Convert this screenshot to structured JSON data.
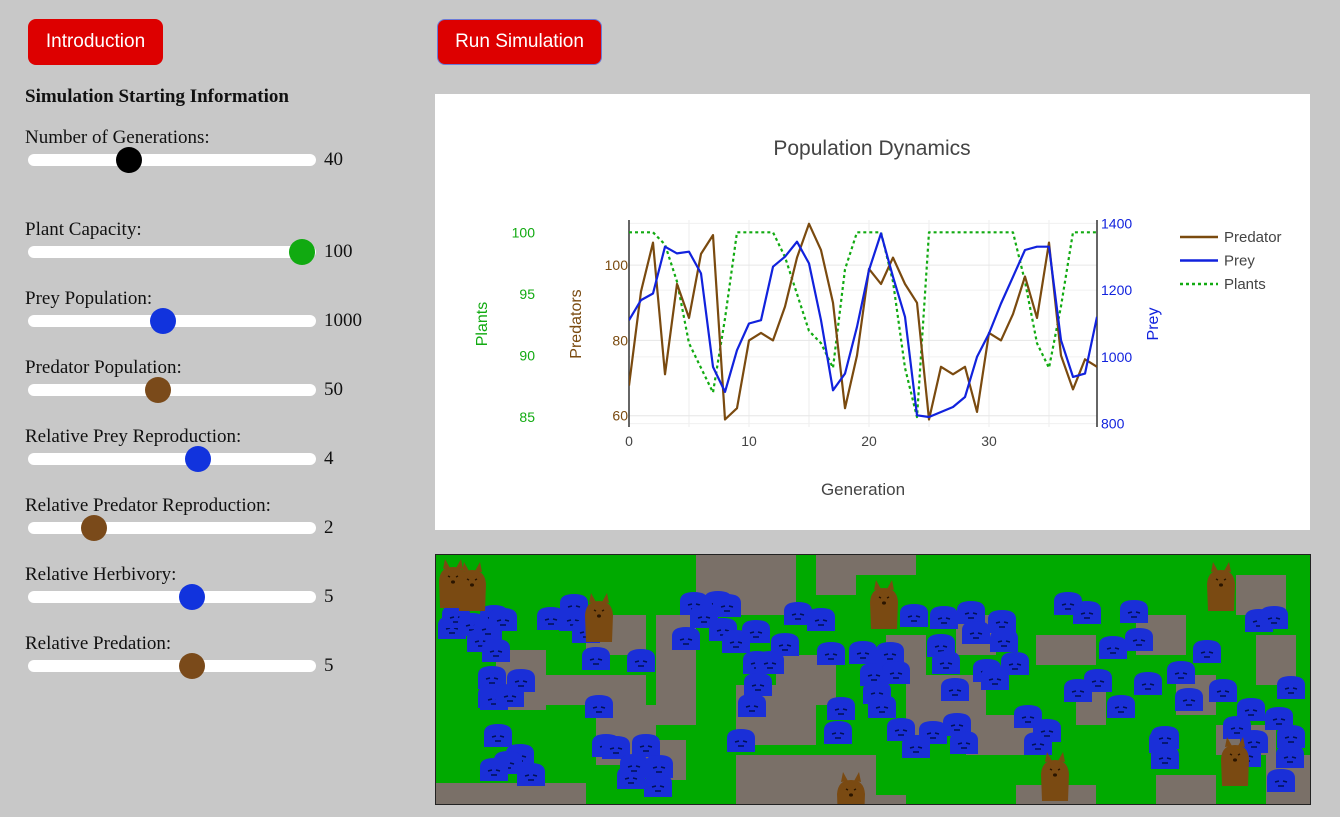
{
  "buttons": {
    "intro": "Introduction",
    "run": "Run Simulation"
  },
  "panel": {
    "title": "Simulation Starting Information",
    "sliders": [
      {
        "label": "Number of Generations:",
        "value": "40",
        "fraction": 0.35,
        "color": "#000000"
      },
      {
        "label": "Plant Capacity:",
        "value": "100",
        "fraction": 0.95,
        "color": "#11aa11"
      },
      {
        "label": "Prey Population:",
        "value": "1000",
        "fraction": 0.47,
        "color": "#1133dd"
      },
      {
        "label": "Predator Population:",
        "value": "50",
        "fraction": 0.45,
        "color": "#7a4a1a"
      },
      {
        "label": "Relative Prey Reproduction:",
        "value": "4",
        "fraction": 0.59,
        "color": "#1133dd"
      },
      {
        "label": "Relative Predator Reproduction:",
        "value": "2",
        "fraction": 0.23,
        "color": "#7a4a1a"
      },
      {
        "label": "Relative Herbivory:",
        "value": "5",
        "fraction": 0.57,
        "color": "#1133dd"
      },
      {
        "label": "Relative Predation:",
        "value": "5",
        "fraction": 0.57,
        "color": "#7a4a1a"
      }
    ]
  },
  "chart_data": {
    "type": "line",
    "title": "Population Dynamics",
    "xlabel": "Generation",
    "xlim": [
      0,
      39
    ],
    "xticks": [
      0,
      10,
      20,
      30
    ],
    "grid": true,
    "legend_placement": "top-right",
    "axes": {
      "predators": {
        "label": "Predators",
        "ylim": [
          57,
          112
        ],
        "ticks": [
          60,
          80,
          100
        ],
        "color": "#7a4a0f"
      },
      "plants": {
        "label": "Plants",
        "ylim": [
          84.2,
          101.0
        ],
        "ticks": [
          85,
          90,
          95,
          100
        ],
        "color": "#11aa11"
      },
      "prey": {
        "label": "Prey",
        "ylim": [
          790,
          1410
        ],
        "ticks": [
          800,
          1000,
          1200,
          1400
        ],
        "color": "#1122dd"
      }
    },
    "series": [
      {
        "name": "Predator",
        "axis": "predators",
        "color": "#7a4a0f",
        "dash": false,
        "values": [
          68,
          93,
          106,
          71,
          95,
          86,
          103,
          108,
          59,
          62,
          80,
          82,
          80,
          89,
          102,
          111,
          104,
          90,
          62,
          76,
          99,
          95,
          102,
          95,
          90,
          59,
          73,
          71,
          73,
          61,
          82,
          80,
          87,
          97,
          86,
          106,
          76,
          67,
          75,
          73
        ]
      },
      {
        "name": "Prey",
        "axis": "prey",
        "color": "#1122dd",
        "dash": false,
        "values": [
          1110,
          1170,
          1190,
          1330,
          1310,
          1315,
          1250,
          970,
          895,
          1020,
          1100,
          1110,
          1270,
          1300,
          1345,
          1280,
          1110,
          900,
          950,
          1090,
          1260,
          1370,
          1240,
          1120,
          825,
          820,
          835,
          850,
          880,
          1000,
          1070,
          1160,
          1240,
          1320,
          1330,
          1330,
          1050,
          940,
          950,
          1120
        ]
      },
      {
        "name": "Plants",
        "axis": "plants",
        "color": "#11aa11",
        "dash": true,
        "values": [
          100,
          100,
          100,
          99,
          96,
          91,
          89,
          87,
          93,
          100,
          100,
          100,
          100,
          98,
          95,
          92,
          91,
          89,
          97,
          100,
          100,
          100,
          96,
          89,
          85,
          100,
          100,
          100,
          100,
          100,
          100,
          100,
          100,
          96,
          91,
          89,
          94,
          100,
          100,
          100
        ]
      }
    ]
  },
  "simulation": {
    "grass_color": "#00aa00",
    "soil_color": "#7a7068",
    "prey_color": "#1a2fd8",
    "predator_color": "#7a4a12"
  }
}
